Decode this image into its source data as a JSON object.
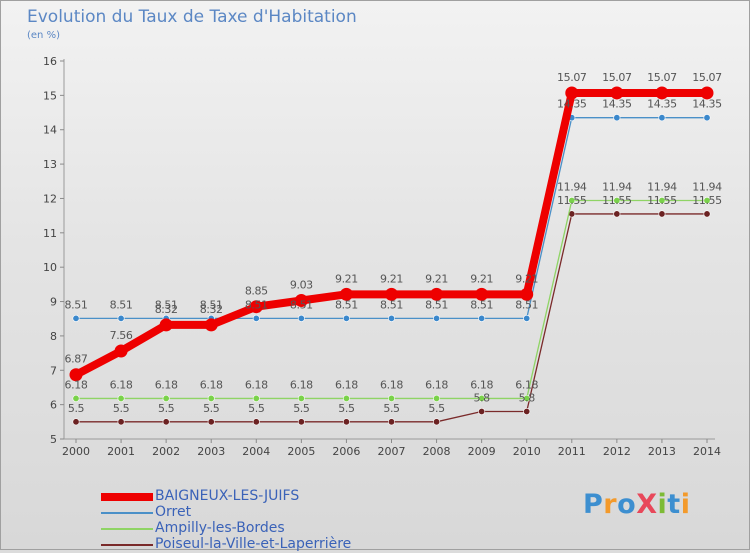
{
  "title": "Evolution du Taux de Taxe d'Habitation",
  "unit_label": "(en %)",
  "logo": {
    "text": "ProXiti",
    "letters": [
      "P",
      "r",
      "o",
      "X",
      "i",
      "t",
      "i"
    ],
    "colors": [
      "#3d8fd0",
      "#f39a2b",
      "#3d8fd0",
      "#e8485a",
      "#7dbb35",
      "#3d8fd0",
      "#f39a2b"
    ]
  },
  "chart_data": {
    "type": "line",
    "title": "Evolution du Taux de Taxe d'Habitation",
    "ylabel": "(en %)",
    "xlabel": "",
    "ylim": [
      5,
      16
    ],
    "yticks": [
      5,
      6,
      7,
      8,
      9,
      10,
      11,
      12,
      13,
      14,
      15,
      16
    ],
    "grid": false,
    "legend_position": "bottom-left",
    "x": [
      "2000",
      "2001",
      "2002",
      "2003",
      "2004",
      "2005",
      "2006",
      "2007",
      "2008",
      "2009",
      "2010",
      "2011",
      "2012",
      "2013",
      "2014"
    ],
    "series": [
      {
        "name": "BAIGNEUX-LES-JUIFS",
        "color": "#ee0000",
        "emphasis": true,
        "values": [
          6.87,
          7.56,
          8.32,
          8.32,
          8.85,
          9.03,
          9.21,
          9.21,
          9.21,
          9.21,
          9.21,
          15.07,
          15.07,
          15.07,
          15.07
        ],
        "labels": [
          "6.87",
          "7.56",
          "8.32",
          "8.32",
          "8.85",
          "9.03",
          "9.21",
          "9.21",
          "9.21",
          "9.21",
          "9.21",
          "15.07",
          "15.07",
          "15.07",
          "15.07"
        ]
      },
      {
        "name": "Orret",
        "color": "#4a90c8",
        "point_color": "#3b88cc",
        "values": [
          8.51,
          8.51,
          8.51,
          8.51,
          8.51,
          8.51,
          8.51,
          8.51,
          8.51,
          8.51,
          8.51,
          14.35,
          14.35,
          14.35,
          14.35
        ],
        "labels": [
          "8.51",
          "8.51",
          "8.51",
          "8.51",
          "8.51",
          "8.51",
          "8.51",
          "8.51",
          "8.51",
          "8.51",
          "8.51",
          "14.35",
          "14.35",
          "14.35",
          "14.35"
        ]
      },
      {
        "name": "Ampilly-les-Bordes",
        "color": "#8fd465",
        "point_color": "#7ad24a",
        "values": [
          6.18,
          6.18,
          6.18,
          6.18,
          6.18,
          6.18,
          6.18,
          6.18,
          6.18,
          6.18,
          6.18,
          11.94,
          11.94,
          11.94,
          11.94
        ],
        "labels": [
          "6.18",
          "6.18",
          "6.18",
          "6.18",
          "6.18",
          "6.18",
          "6.18",
          "6.18",
          "6.18",
          "6.18",
          "6.18",
          "11.94",
          "11.94",
          "11.94",
          "11.94"
        ]
      },
      {
        "name": "Poiseul-la-Ville-et-Laperrière",
        "color": "#7a2a2a",
        "point_color": "#6b2222",
        "values": [
          5.5,
          5.5,
          5.5,
          5.5,
          5.5,
          5.5,
          5.5,
          5.5,
          5.5,
          5.8,
          5.8,
          11.55,
          11.55,
          11.55,
          11.55
        ],
        "labels": [
          "5.5",
          "5.5",
          "5.5",
          "5.5",
          "5.5",
          "5.5",
          "5.5",
          "5.5",
          "5.5",
          "5.8",
          "5.8",
          "11.55",
          "11.55",
          "11.55",
          "11.55"
        ]
      }
    ]
  }
}
